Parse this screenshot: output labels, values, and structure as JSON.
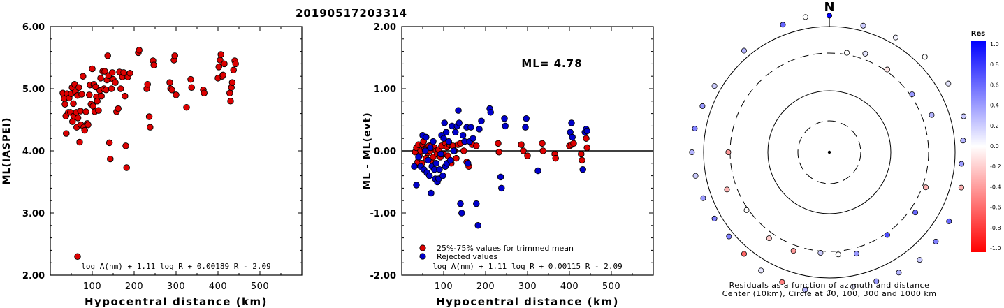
{
  "page_title": "20190517203314",
  "chart_data": [
    {
      "type": "scatter",
      "xlabel": "Hypocentral distance (km)",
      "ylabel": "ML(IASPEI)",
      "xlim": [
        0,
        600
      ],
      "ylim": [
        2.0,
        6.0
      ],
      "xticks": [
        "100",
        "200",
        "300",
        "400",
        "500"
      ],
      "yticks": [
        "2.00",
        "3.00",
        "4.00",
        "5.00",
        "6.00"
      ],
      "formula": "log A(nm) + 1.11 log R + 0.00189 R - 2.09",
      "color": "#dd0000",
      "points": [
        [
          30,
          4.93
        ],
        [
          33,
          4.84
        ],
        [
          35,
          4.75
        ],
        [
          37,
          4.56
        ],
        [
          38,
          4.28
        ],
        [
          40,
          4.92
        ],
        [
          43,
          4.62
        ],
        [
          45,
          4.85
        ],
        [
          48,
          4.62
        ],
        [
          50,
          4.92
        ],
        [
          52,
          5.02
        ],
        [
          53,
          4.47
        ],
        [
          55,
          4.76
        ],
        [
          56,
          4.56
        ],
        [
          58,
          5.07
        ],
        [
          60,
          4.95
        ],
        [
          62,
          4.62
        ],
        [
          63,
          4.38
        ],
        [
          65,
          4.89
        ],
        [
          66,
          4.53
        ],
        [
          68,
          5.02
        ],
        [
          70,
          4.14
        ],
        [
          72,
          4.64
        ],
        [
          73,
          4.42
        ],
        [
          75,
          4.91
        ],
        [
          78,
          5.2
        ],
        [
          80,
          4.38
        ],
        [
          82,
          4.33
        ],
        [
          85,
          4.63
        ],
        [
          88,
          4.44
        ],
        [
          90,
          4.42
        ],
        [
          93,
          4.9
        ],
        [
          95,
          5.06
        ],
        [
          97,
          4.75
        ],
        [
          100,
          5.32
        ],
        [
          102,
          4.72
        ],
        [
          104,
          5.07
        ],
        [
          106,
          4.63
        ],
        [
          108,
          5.03
        ],
        [
          110,
          4.87
        ],
        [
          112,
          4.8
        ],
        [
          115,
          4.65
        ],
        [
          118,
          4.97
        ],
        [
          120,
          5.17
        ],
        [
          122,
          4.88
        ],
        [
          125,
          5.28
        ],
        [
          128,
          5.0
        ],
        [
          130,
          5.28
        ],
        [
          133,
          4.98
        ],
        [
          135,
          5.14
        ],
        [
          137,
          5.53
        ],
        [
          139,
          5.21
        ],
        [
          141,
          4.13
        ],
        [
          143,
          3.87
        ],
        [
          146,
          5.0
        ],
        [
          148,
          5.26
        ],
        [
          150,
          5.15
        ],
        [
          155,
          5.1
        ],
        [
          158,
          4.63
        ],
        [
          162,
          4.68
        ],
        [
          165,
          5.27
        ],
        [
          168,
          5.0
        ],
        [
          172,
          5.19
        ],
        [
          175,
          5.26
        ],
        [
          178,
          4.88
        ],
        [
          180,
          4.08
        ],
        [
          182,
          3.73
        ],
        [
          185,
          5.19
        ],
        [
          190,
          5.25
        ],
        [
          210,
          5.58
        ],
        [
          212,
          5.62
        ],
        [
          230,
          5.0
        ],
        [
          232,
          5.07
        ],
        [
          236,
          4.55
        ],
        [
          238,
          4.38
        ],
        [
          245,
          5.45
        ],
        [
          247,
          5.38
        ],
        [
          285,
          5.1
        ],
        [
          287,
          5.0
        ],
        [
          290,
          4.98
        ],
        [
          295,
          5.46
        ],
        [
          297,
          5.53
        ],
        [
          300,
          4.9
        ],
        [
          325,
          4.7
        ],
        [
          335,
          5.15
        ],
        [
          337,
          5.02
        ],
        [
          365,
          4.98
        ],
        [
          367,
          4.93
        ],
        [
          400,
          5.17
        ],
        [
          402,
          5.35
        ],
        [
          405,
          5.46
        ],
        [
          407,
          5.55
        ],
        [
          410,
          5.2
        ],
        [
          412,
          5.22
        ],
        [
          415,
          5.4
        ],
        [
          428,
          4.93
        ],
        [
          430,
          4.8
        ],
        [
          432,
          5.02
        ],
        [
          434,
          5.1
        ],
        [
          437,
          5.3
        ],
        [
          440,
          5.45
        ],
        [
          442,
          5.4
        ],
        [
          65,
          2.3
        ]
      ]
    },
    {
      "type": "scatter",
      "title": "ML= 4.78",
      "xlabel": "Hypocentral distance (km)",
      "ylabel": "ML - ML(evt)",
      "xlim": [
        0,
        600
      ],
      "ylim": [
        -2.0,
        2.0
      ],
      "xticks": [
        "100",
        "200",
        "300",
        "400",
        "500"
      ],
      "yticks": [
        "-2.00",
        "-1.00",
        "0.00",
        "1.00",
        "2.00"
      ],
      "formula": "log A(nm) + 1.11 log R + 0.00115 R - 2.09",
      "legend": [
        {
          "label": "25%-75% values for trimmed mean",
          "color": "#dd0000"
        },
        {
          "label": "Rejected values",
          "color": "#0000cc"
        }
      ],
      "series": [
        {
          "name": "25%-75% values for trimmed mean",
          "color": "#dd0000",
          "points": [
            [
              32,
              -0.02
            ],
            [
              35,
              0.05
            ],
            [
              38,
              -0.18
            ],
            [
              40,
              0.1
            ],
            [
              42,
              -0.08
            ],
            [
              45,
              0.0
            ],
            [
              48,
              -0.2
            ],
            [
              50,
              0.1
            ],
            [
              52,
              0.15
            ],
            [
              55,
              0.03
            ],
            [
              58,
              -0.12
            ],
            [
              60,
              0.05
            ],
            [
              62,
              -0.03
            ],
            [
              65,
              0.08
            ],
            [
              68,
              0.0
            ],
            [
              70,
              -0.15
            ],
            [
              72,
              0.1
            ],
            [
              75,
              -0.1
            ],
            [
              78,
              0.05
            ],
            [
              82,
              0.0
            ],
            [
              85,
              -0.05
            ],
            [
              88,
              0.02
            ],
            [
              92,
              -0.1
            ],
            [
              95,
              0.08
            ],
            [
              100,
              -0.05
            ],
            [
              104,
              0.12
            ],
            [
              108,
              0.06
            ],
            [
              110,
              -0.08
            ],
            [
              114,
              0.1
            ],
            [
              118,
              -0.2
            ],
            [
              122,
              0.08
            ],
            [
              126,
              0.0
            ],
            [
              130,
              -0.12
            ],
            [
              134,
              0.1
            ],
            [
              140,
              0.12
            ],
            [
              148,
              0.0
            ],
            [
              155,
              -0.18
            ],
            [
              160,
              -0.25
            ],
            [
              168,
              0.1
            ],
            [
              178,
              0.08
            ],
            [
              230,
              0.12
            ],
            [
              232,
              -0.02
            ],
            [
              285,
              0.1
            ],
            [
              290,
              0.0
            ],
            [
              300,
              -0.08
            ],
            [
              335,
              0.12
            ],
            [
              337,
              0.0
            ],
            [
              365,
              -0.05
            ],
            [
              367,
              -0.12
            ],
            [
              400,
              0.08
            ],
            [
              405,
              0.1
            ],
            [
              410,
              0.12
            ],
            [
              428,
              -0.05
            ],
            [
              430,
              -0.15
            ],
            [
              440,
              0.2
            ],
            [
              442,
              0.05
            ]
          ]
        },
        {
          "name": "Rejected values",
          "color": "#0000cc",
          "points": [
            [
              30,
              -0.25
            ],
            [
              35,
              -0.55
            ],
            [
              40,
              -0.1
            ],
            [
              45,
              -0.25
            ],
            [
              50,
              0.25
            ],
            [
              53,
              -0.3
            ],
            [
              56,
              0.0
            ],
            [
              58,
              0.22
            ],
            [
              60,
              -0.35
            ],
            [
              63,
              -0.15
            ],
            [
              66,
              -0.4
            ],
            [
              68,
              0.05
            ],
            [
              70,
              -0.68
            ],
            [
              72,
              -0.25
            ],
            [
              75,
              0.15
            ],
            [
              78,
              -0.3
            ],
            [
              80,
              -0.45
            ],
            [
              82,
              -0.2
            ],
            [
              85,
              -0.5
            ],
            [
              88,
              -0.45
            ],
            [
              90,
              -0.3
            ],
            [
              93,
              -0.05
            ],
            [
              95,
              0.25
            ],
            [
              98,
              -0.4
            ],
            [
              100,
              0.2
            ],
            [
              102,
              0.45
            ],
            [
              104,
              -0.25
            ],
            [
              106,
              0.3
            ],
            [
              108,
              -0.2
            ],
            [
              112,
              0.15
            ],
            [
              116,
              -0.15
            ],
            [
              120,
              0.4
            ],
            [
              124,
              0.0
            ],
            [
              128,
              0.3
            ],
            [
              132,
              0.4
            ],
            [
              135,
              0.65
            ],
            [
              137,
              0.45
            ],
            [
              140,
              -0.85
            ],
            [
              143,
              -1.0
            ],
            [
              146,
              0.25
            ],
            [
              150,
              0.15
            ],
            [
              155,
              0.38
            ],
            [
              158,
              -0.2
            ],
            [
              162,
              0.15
            ],
            [
              165,
              0.38
            ],
            [
              170,
              0.2
            ],
            [
              178,
              -0.85
            ],
            [
              182,
              -1.2
            ],
            [
              185,
              0.35
            ],
            [
              190,
              0.48
            ],
            [
              210,
              0.68
            ],
            [
              212,
              0.62
            ],
            [
              236,
              -0.42
            ],
            [
              238,
              -0.6
            ],
            [
              245,
              0.52
            ],
            [
              247,
              0.4
            ],
            [
              295,
              0.38
            ],
            [
              297,
              0.52
            ],
            [
              325,
              -0.32
            ],
            [
              402,
              0.3
            ],
            [
              405,
              0.45
            ],
            [
              407,
              0.22
            ],
            [
              432,
              -0.3
            ],
            [
              437,
              0.3
            ],
            [
              440,
              0.35
            ],
            [
              442,
              0.32
            ]
          ]
        }
      ],
      "zero_line": 0
    },
    {
      "type": "scatter",
      "subtype": "polar",
      "north_label": "N",
      "caption_line1": "Residuals as a function of azimuth and distance",
      "caption_line2": "Center (10km), Circle at 30, 100, 300 and 1000 km",
      "colorbar": {
        "title": "Res",
        "ticks": [
          "1.0",
          "0.8",
          "0.6",
          "0.4",
          "0.2",
          "0.0",
          "-0.2",
          "-0.4",
          "-0.6",
          "-0.8",
          "-1.0"
        ],
        "range": [
          -1.0,
          1.0
        ],
        "high_color": "#0000ff",
        "low_color": "#ff0000"
      },
      "rings_km": [
        30,
        100,
        300,
        1000
      ],
      "stations": [
        [
          0,
          2.95,
          1.0
        ],
        [
          15,
          2.88,
          0.2
        ],
        [
          30,
          2.9,
          0.05
        ],
        [
          45,
          2.93,
          0.0
        ],
        [
          60,
          2.96,
          0.1
        ],
        [
          75,
          2.98,
          0.2
        ],
        [
          85,
          2.92,
          0.3
        ],
        [
          95,
          2.9,
          0.4
        ],
        [
          105,
          2.95,
          -0.3
        ],
        [
          120,
          2.97,
          0.6
        ],
        [
          130,
          2.98,
          0.5
        ],
        [
          140,
          3.0,
          0.2
        ],
        [
          150,
          2.98,
          0.3
        ],
        [
          160,
          2.96,
          0.4
        ],
        [
          170,
          2.95,
          0.1
        ],
        [
          180,
          3.0,
          0.0
        ],
        [
          190,
          2.99,
          0.3
        ],
        [
          200,
          2.97,
          -0.5
        ],
        [
          210,
          2.95,
          0.1
        ],
        [
          220,
          2.9,
          -0.6
        ],
        [
          230,
          2.88,
          0.5
        ],
        [
          240,
          2.9,
          0.5
        ],
        [
          250,
          2.92,
          0.4
        ],
        [
          260,
          2.94,
          0.2
        ],
        [
          270,
          2.96,
          0.3
        ],
        [
          280,
          2.95,
          0.5
        ],
        [
          290,
          2.93,
          0.4
        ],
        [
          300,
          2.9,
          0.2
        ],
        [
          320,
          2.9,
          0.3
        ],
        [
          340,
          2.94,
          0.6
        ],
        [
          350,
          2.96,
          0.0
        ],
        [
          10,
          2.5,
          0.0
        ],
        [
          20,
          2.55,
          0.1
        ],
        [
          35,
          2.5,
          -0.1
        ],
        [
          55,
          2.5,
          0.4
        ],
        [
          70,
          2.6,
          0.3
        ],
        [
          110,
          2.52,
          -0.3
        ],
        [
          125,
          2.55,
          0.6
        ],
        [
          145,
          2.5,
          0.7
        ],
        [
          165,
          2.55,
          0.4
        ],
        [
          175,
          2.52,
          0.0
        ],
        [
          185,
          2.5,
          0.2
        ],
        [
          200,
          2.55,
          -0.4
        ],
        [
          215,
          2.55,
          -0.2
        ],
        [
          235,
          2.5,
          0.0
        ],
        [
          250,
          2.6,
          -0.3
        ],
        [
          270,
          2.5,
          -0.4
        ]
      ]
    }
  ]
}
